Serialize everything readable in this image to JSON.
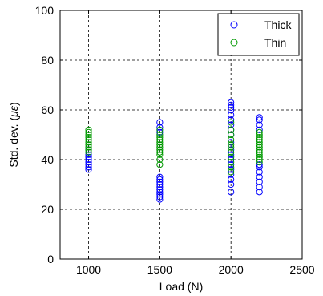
{
  "chart_data": {
    "type": "scatter",
    "title": "",
    "xlabel": "Load (N)",
    "ylabel_prefix": "Std. dev. (",
    "ylabel_unit": "με",
    "ylabel_suffix": ")",
    "xlim": [
      800,
      2500
    ],
    "ylim": [
      0,
      100
    ],
    "xticks": [
      1000,
      1500,
      2000,
      2500
    ],
    "yticks": [
      0,
      20,
      40,
      60,
      80,
      100
    ],
    "grid": true,
    "legend_position": "top-right",
    "series": [
      {
        "name": "Thick",
        "color": "#0000ff",
        "points": [
          {
            "x": 1000,
            "y": 36
          },
          {
            "x": 1000,
            "y": 37
          },
          {
            "x": 1000,
            "y": 38
          },
          {
            "x": 1000,
            "y": 39
          },
          {
            "x": 1000,
            "y": 40
          },
          {
            "x": 1000,
            "y": 41
          },
          {
            "x": 1000,
            "y": 42
          },
          {
            "x": 1000,
            "y": 44
          },
          {
            "x": 1500,
            "y": 24
          },
          {
            "x": 1500,
            "y": 25
          },
          {
            "x": 1500,
            "y": 26
          },
          {
            "x": 1500,
            "y": 27
          },
          {
            "x": 1500,
            "y": 28
          },
          {
            "x": 1500,
            "y": 29
          },
          {
            "x": 1500,
            "y": 30
          },
          {
            "x": 1500,
            "y": 31
          },
          {
            "x": 1500,
            "y": 32
          },
          {
            "x": 1500,
            "y": 33
          },
          {
            "x": 1500,
            "y": 51
          },
          {
            "x": 1500,
            "y": 53
          },
          {
            "x": 1500,
            "y": 55
          },
          {
            "x": 2000,
            "y": 27
          },
          {
            "x": 2000,
            "y": 30
          },
          {
            "x": 2000,
            "y": 32
          },
          {
            "x": 2000,
            "y": 34
          },
          {
            "x": 2000,
            "y": 36
          },
          {
            "x": 2000,
            "y": 38
          },
          {
            "x": 2000,
            "y": 40
          },
          {
            "x": 2000,
            "y": 42
          },
          {
            "x": 2000,
            "y": 44
          },
          {
            "x": 2000,
            "y": 47
          },
          {
            "x": 2000,
            "y": 50
          },
          {
            "x": 2000,
            "y": 52
          },
          {
            "x": 2000,
            "y": 54
          },
          {
            "x": 2000,
            "y": 56
          },
          {
            "x": 2000,
            "y": 58
          },
          {
            "x": 2000,
            "y": 60
          },
          {
            "x": 2000,
            "y": 61
          },
          {
            "x": 2000,
            "y": 62
          },
          {
            "x": 2000,
            "y": 63
          },
          {
            "x": 2200,
            "y": 27
          },
          {
            "x": 2200,
            "y": 29
          },
          {
            "x": 2200,
            "y": 31
          },
          {
            "x": 2200,
            "y": 33
          },
          {
            "x": 2200,
            "y": 35
          },
          {
            "x": 2200,
            "y": 37
          },
          {
            "x": 2200,
            "y": 38
          },
          {
            "x": 2200,
            "y": 52
          },
          {
            "x": 2200,
            "y": 54
          },
          {
            "x": 2200,
            "y": 56
          },
          {
            "x": 2200,
            "y": 57
          }
        ]
      },
      {
        "name": "Thin",
        "color": "#009900",
        "points": [
          {
            "x": 1000,
            "y": 43
          },
          {
            "x": 1000,
            "y": 44
          },
          {
            "x": 1000,
            "y": 45
          },
          {
            "x": 1000,
            "y": 46
          },
          {
            "x": 1000,
            "y": 47
          },
          {
            "x": 1000,
            "y": 48
          },
          {
            "x": 1000,
            "y": 49
          },
          {
            "x": 1000,
            "y": 50
          },
          {
            "x": 1000,
            "y": 51
          },
          {
            "x": 1000,
            "y": 52
          },
          {
            "x": 1500,
            "y": 38
          },
          {
            "x": 1500,
            "y": 40
          },
          {
            "x": 1500,
            "y": 42
          },
          {
            "x": 1500,
            "y": 43
          },
          {
            "x": 1500,
            "y": 44
          },
          {
            "x": 1500,
            "y": 45
          },
          {
            "x": 1500,
            "y": 46
          },
          {
            "x": 1500,
            "y": 47
          },
          {
            "x": 1500,
            "y": 48
          },
          {
            "x": 1500,
            "y": 49
          },
          {
            "x": 1500,
            "y": 50
          },
          {
            "x": 1500,
            "y": 52
          },
          {
            "x": 2000,
            "y": 35
          },
          {
            "x": 2000,
            "y": 37
          },
          {
            "x": 2000,
            "y": 39
          },
          {
            "x": 2000,
            "y": 41
          },
          {
            "x": 2000,
            "y": 43
          },
          {
            "x": 2000,
            "y": 45
          },
          {
            "x": 2000,
            "y": 46
          },
          {
            "x": 2000,
            "y": 48
          },
          {
            "x": 2000,
            "y": 50
          },
          {
            "x": 2000,
            "y": 52
          },
          {
            "x": 2000,
            "y": 55
          },
          {
            "x": 2200,
            "y": 39
          },
          {
            "x": 2200,
            "y": 40
          },
          {
            "x": 2200,
            "y": 41
          },
          {
            "x": 2200,
            "y": 42
          },
          {
            "x": 2200,
            "y": 43
          },
          {
            "x": 2200,
            "y": 44
          },
          {
            "x": 2200,
            "y": 45
          },
          {
            "x": 2200,
            "y": 46
          },
          {
            "x": 2200,
            "y": 47
          },
          {
            "x": 2200,
            "y": 48
          },
          {
            "x": 2200,
            "y": 49
          },
          {
            "x": 2200,
            "y": 50
          },
          {
            "x": 2200,
            "y": 51
          }
        ]
      }
    ]
  }
}
